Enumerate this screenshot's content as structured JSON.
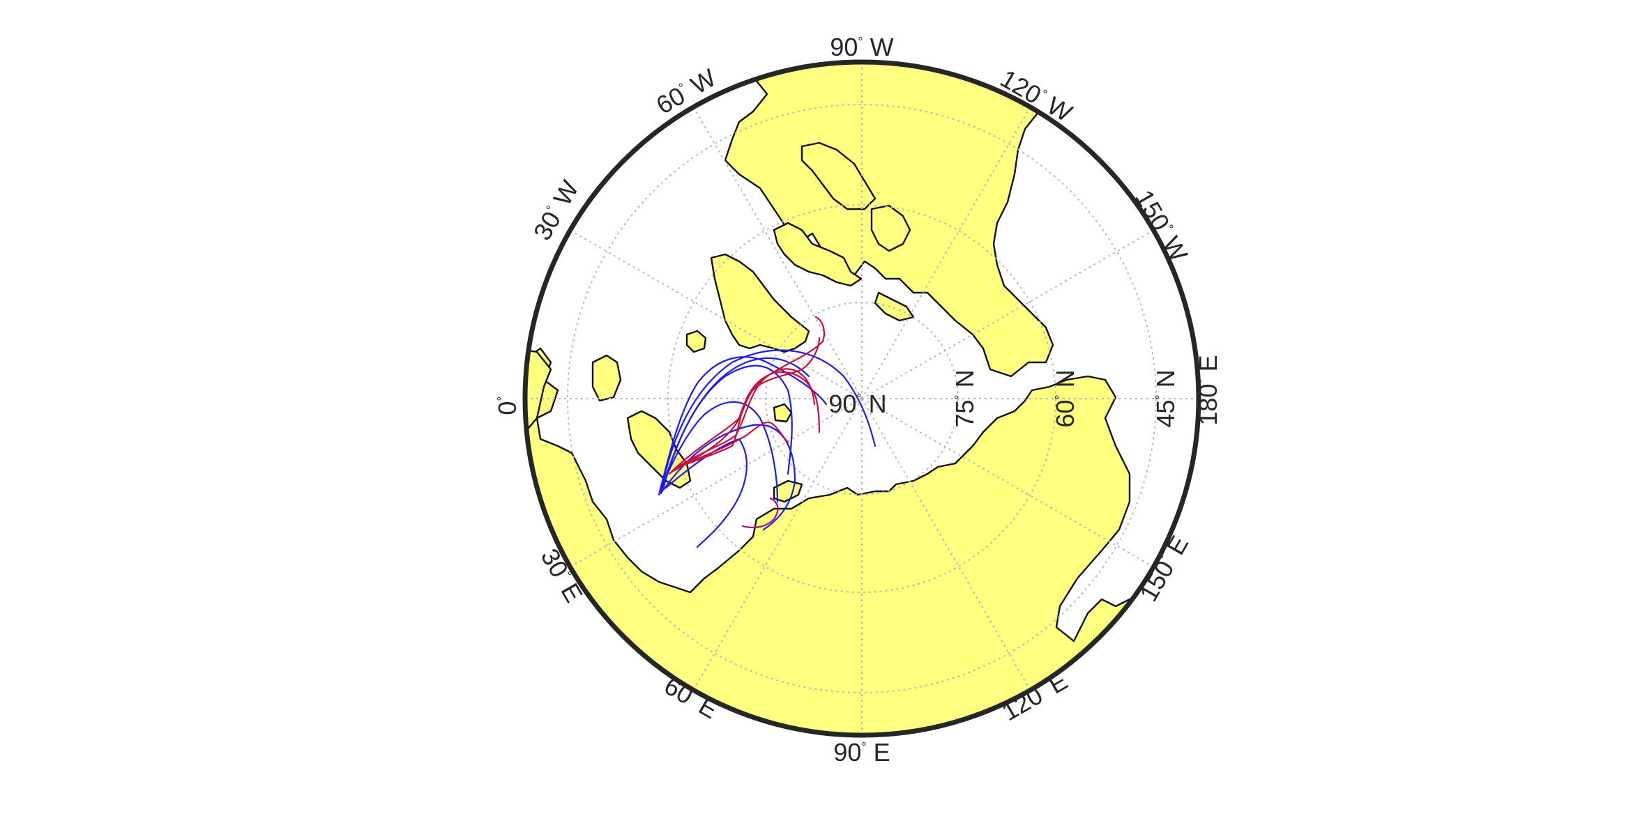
{
  "colors": {
    "land": "#ffff80",
    "coast": "#111111",
    "frame": "#262626",
    "grid": "#b8b8b8",
    "traj_blue": "#1a1aff",
    "traj_red": "#c8103c"
  },
  "map": {
    "projection": "polar-stereographic",
    "center": "90 N",
    "meridian_labels": [
      {
        "deg": "0",
        "dir": ""
      },
      {
        "deg": "30",
        "dir": "W"
      },
      {
        "deg": "60",
        "dir": "W"
      },
      {
        "deg": "90",
        "dir": "W"
      },
      {
        "deg": "120",
        "dir": "W"
      },
      {
        "deg": "150",
        "dir": "W"
      },
      {
        "deg": "180",
        "dir": "E"
      },
      {
        "deg": "150",
        "dir": "E"
      },
      {
        "deg": "120",
        "dir": "E"
      },
      {
        "deg": "90",
        "dir": "E"
      },
      {
        "deg": "60",
        "dir": "E"
      },
      {
        "deg": "30",
        "dir": "E"
      }
    ],
    "parallel_labels": [
      {
        "deg": "90",
        "dir": "N"
      },
      {
        "deg": "75",
        "dir": "N"
      },
      {
        "deg": "60",
        "dir": "N"
      },
      {
        "deg": "45",
        "dir": "N"
      }
    ],
    "degree_symbol": "°"
  }
}
